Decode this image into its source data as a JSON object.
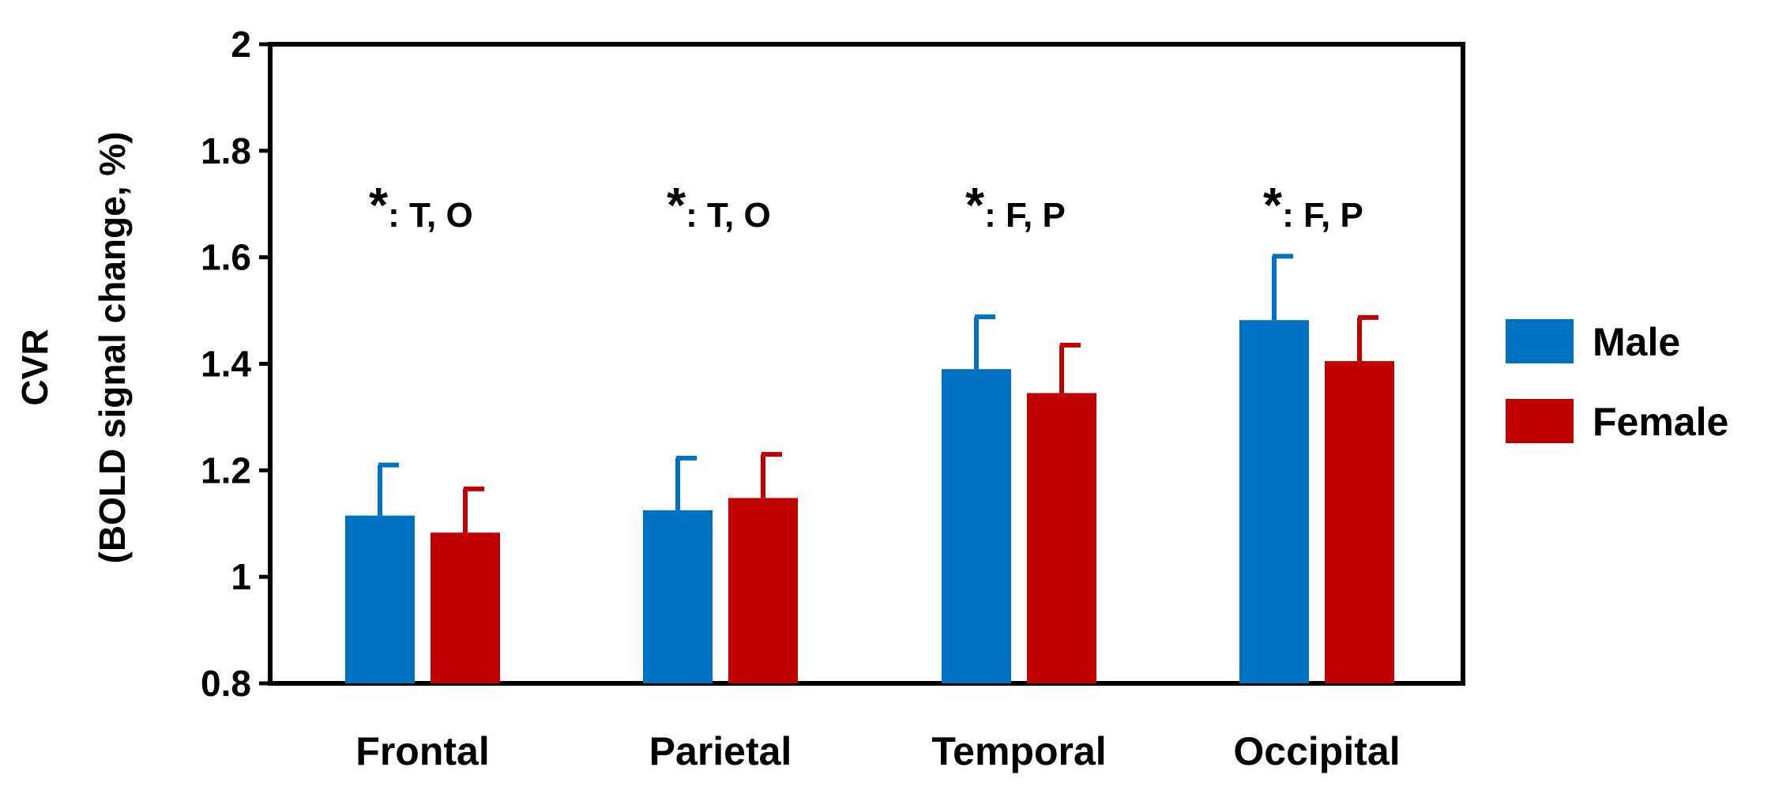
{
  "chart_data": {
    "type": "bar",
    "title": "",
    "xlabel": "",
    "ylabel_line1": "CVR",
    "ylabel_line2": "(BOLD signal change, %)",
    "ylim": [
      0.8,
      2
    ],
    "yticks": [
      0.8,
      1,
      1.2,
      1.4,
      1.6,
      1.8,
      2
    ],
    "ytick_labels": [
      "0.8",
      "1",
      "1.2",
      "1.4",
      "1.6",
      "1.8",
      "2"
    ],
    "categories": [
      "Frontal",
      "Parietal",
      "Temporal",
      "Occipital"
    ],
    "series": [
      {
        "name": "Male",
        "color": "#0070c0",
        "values": [
          1.115,
          1.125,
          1.39,
          1.482
        ],
        "errors": [
          0.095,
          0.098,
          0.098,
          0.12
        ]
      },
      {
        "name": "Female",
        "color": "#c00000",
        "values": [
          1.083,
          1.148,
          1.345,
          1.405
        ],
        "errors": [
          0.082,
          0.082,
          0.09,
          0.082
        ]
      }
    ],
    "annotations": [
      {
        "category": "Frontal",
        "star": "*",
        "text": ": T, O"
      },
      {
        "category": "Parietal",
        "star": "*",
        "text": ": T, O"
      },
      {
        "category": "Temporal",
        "star": "*",
        "text": ": F, P"
      },
      {
        "category": "Occipital",
        "star": "*",
        "text": ": F, P"
      }
    ],
    "legend_position": "right"
  }
}
